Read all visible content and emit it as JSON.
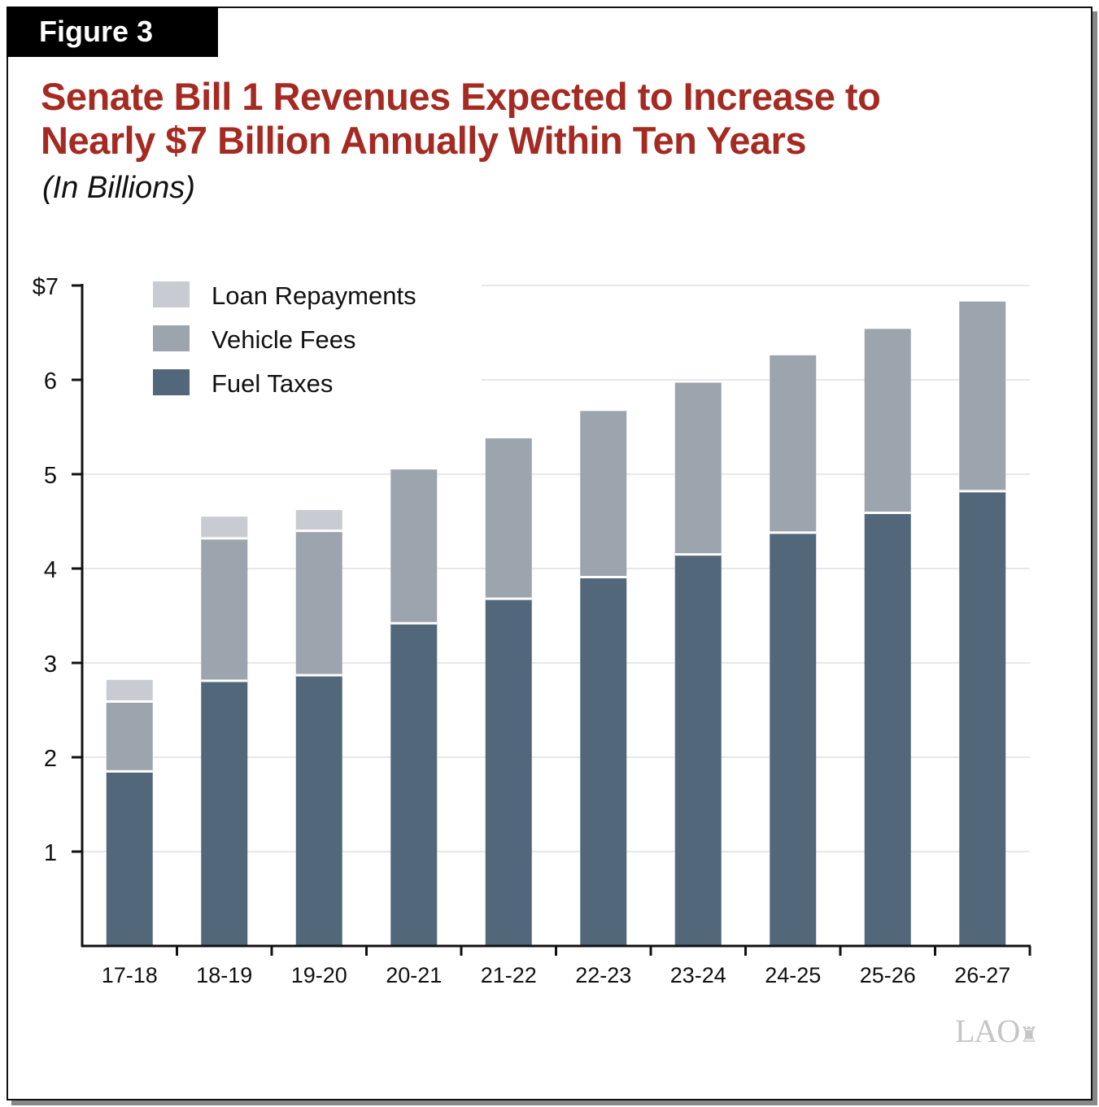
{
  "figure_label": "Figure 3",
  "logo_text": "LAO",
  "chart_data": {
    "type": "bar",
    "stacked": true,
    "title": "Senate Bill 1 Revenues Expected to Increase to Nearly $7 Billion Annually Within Ten Years",
    "title_lines": [
      "Senate Bill 1 Revenues Expected to Increase to",
      "Nearly $7 Billion Annually Within Ten Years"
    ],
    "subtitle": "(In Billions)",
    "xlabel": "",
    "ylabel": "",
    "ylim": [
      0,
      7
    ],
    "yticks": [
      1,
      2,
      3,
      4,
      5,
      6,
      7
    ],
    "ytick_labels": [
      "1",
      "2",
      "3",
      "4",
      "5",
      "6",
      "$7"
    ],
    "grid": true,
    "legend_position": "top-left",
    "categories": [
      "17-18",
      "18-19",
      "19-20",
      "20-21",
      "21-22",
      "22-23",
      "23-24",
      "24-25",
      "25-26",
      "26-27"
    ],
    "series": [
      {
        "name": "Fuel Taxes",
        "color": "#52687a",
        "values": [
          1.85,
          2.81,
          2.87,
          3.42,
          3.68,
          3.91,
          4.15,
          4.38,
          4.59,
          4.82
        ]
      },
      {
        "name": "Vehicle Fees",
        "color": "#9ca4ae",
        "values": [
          0.74,
          1.51,
          1.53,
          1.63,
          1.7,
          1.76,
          1.82,
          1.88,
          1.95,
          2.01
        ]
      },
      {
        "name": "Loan Repayments",
        "color": "#c8cbd2",
        "values": [
          0.23,
          0.23,
          0.22,
          0,
          0,
          0,
          0,
          0,
          0,
          0
        ]
      }
    ]
  }
}
